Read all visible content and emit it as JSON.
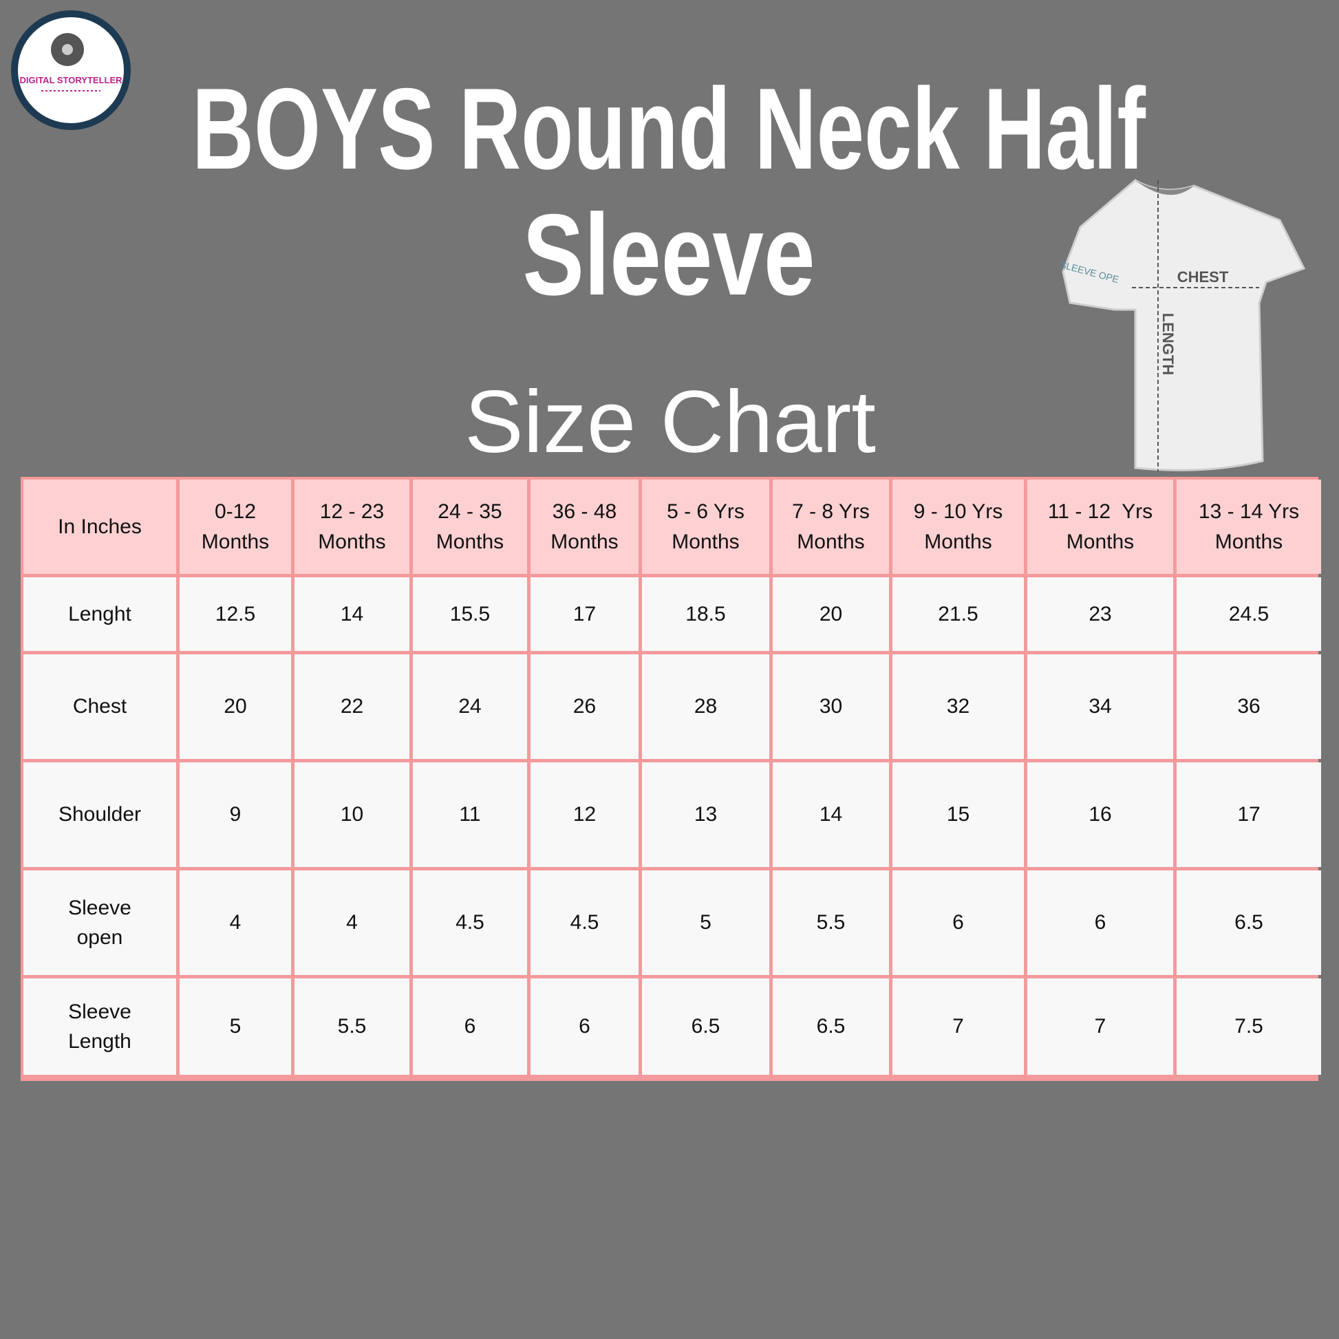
{
  "logo": {
    "text": "DIGITAL STORYTELLER"
  },
  "header": {
    "title_lines": [
      "BOYS Round Neck Half",
      "Sleeve"
    ],
    "subtitle": "Size Chart"
  },
  "illustration": {
    "chest": "CHEST",
    "length": "LENGTH",
    "sleeve": "SLEEVE OPE"
  },
  "table": {
    "header": [
      [
        "In Inches"
      ],
      [
        "0-12",
        "Months"
      ],
      [
        "12 - 23",
        "Months"
      ],
      [
        "24 - 35",
        "Months"
      ],
      [
        "36 - 48",
        "Months"
      ],
      [
        "5 - 6 Yrs",
        "Months"
      ],
      [
        "7 - 8 Yrs",
        "Months"
      ],
      [
        "9 - 10 Yrs",
        "Months"
      ],
      [
        "11 - 12  Yrs",
        "Months"
      ],
      [
        "13 - 14 Yrs",
        "Months"
      ]
    ],
    "rows": [
      [
        [
          "Lenght"
        ],
        12.5,
        14,
        15.5,
        17,
        18.5,
        20,
        21.5,
        23,
        24.5
      ],
      [
        [
          "Chest"
        ],
        20,
        22,
        24,
        26,
        28,
        30,
        32,
        34,
        36
      ],
      [
        [
          "Shoulder"
        ],
        9,
        10,
        11,
        12,
        13,
        14,
        15,
        16,
        17
      ],
      [
        [
          "Sleeve",
          "open"
        ],
        4,
        4,
        4.5,
        4.5,
        5,
        5.5,
        6,
        6,
        6.5
      ],
      [
        [
          "Sleeve",
          "Length"
        ],
        5,
        5.5,
        6,
        6,
        6.5,
        6.5,
        7,
        7,
        7.5
      ]
    ]
  }
}
